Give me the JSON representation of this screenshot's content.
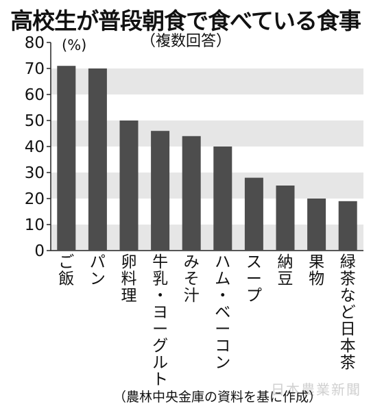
{
  "chart_data": {
    "type": "bar",
    "title": "高校生が普段朝食で食べている食事",
    "subtitle": "（複数回答）",
    "unit_label": "(%)",
    "categories": [
      "ご飯",
      "パン",
      "卵料理",
      "牛乳・ヨーグルト",
      "みそ汁",
      "ハム・ベーコン",
      "スープ",
      "納豆",
      "果物",
      "緑茶など日本茶"
    ],
    "values": [
      71,
      70,
      50,
      46,
      44,
      40,
      28,
      25,
      20,
      19
    ],
    "ylim": [
      0,
      80
    ],
    "yticks": [
      0,
      10,
      20,
      30,
      40,
      50,
      60,
      70,
      80
    ],
    "grid": "alternating horizontal bands",
    "bar_color": "#4d4d4d",
    "band_color": "#e6e6e6",
    "source": "（農林中央金庫の資料を基に作成）"
  },
  "watermark": "日本農業新聞"
}
